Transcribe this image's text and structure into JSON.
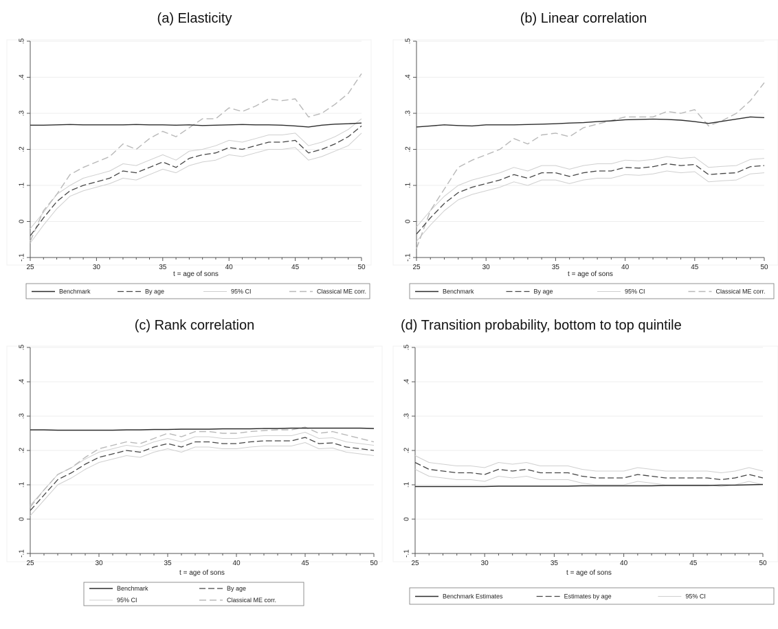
{
  "titles": [
    "(a) Elasticity",
    "(b) Linear correlation",
    "(c) Rank correlation",
    "(d) Transition probability, bottom to top quintile"
  ],
  "colors": {
    "benchmark": "#2b2b2b",
    "by_age": "#444444",
    "ci": "#cfcfcf",
    "classical": "#b8b8b8",
    "frame": "#555555",
    "grid": "#eeeeee"
  },
  "chart_data": [
    {
      "type": "line",
      "title": "(a) Elasticity",
      "xlabel": "t = age of sons",
      "ylabel": "",
      "xlim": [
        25,
        50
      ],
      "ylim": [
        -0.1,
        0.5
      ],
      "xticks": [
        25,
        30,
        35,
        40,
        45,
        50
      ],
      "yticks": [
        -0.1,
        0,
        0.1,
        0.2,
        0.3,
        0.4,
        0.5
      ],
      "ytick_labels": [
        "-.1",
        "0",
        ".1",
        ".2",
        ".3",
        ".4",
        ".5"
      ],
      "x": [
        25,
        26,
        27,
        28,
        29,
        30,
        31,
        32,
        33,
        34,
        35,
        36,
        37,
        38,
        39,
        40,
        41,
        42,
        43,
        44,
        45,
        46,
        47,
        48,
        49,
        50
      ],
      "legend": {
        "placement": "bottom",
        "columns": 4,
        "entries": [
          "Benchmark",
          "By age",
          "95% CI",
          "Classical ME corr."
        ]
      },
      "series": [
        {
          "name": "Benchmark",
          "style": "benchmark",
          "values": [
            0.267,
            0.267,
            0.268,
            0.269,
            0.268,
            0.268,
            0.268,
            0.268,
            0.269,
            0.268,
            0.268,
            0.267,
            0.268,
            0.266,
            0.267,
            0.268,
            0.269,
            0.268,
            0.268,
            0.267,
            0.265,
            0.262,
            0.267,
            0.27,
            0.271,
            0.273
          ]
        },
        {
          "name": "By age",
          "style": "by_age",
          "values": [
            -0.04,
            0.01,
            0.055,
            0.085,
            0.1,
            0.11,
            0.12,
            0.14,
            0.135,
            0.15,
            0.165,
            0.15,
            0.175,
            0.185,
            0.19,
            0.205,
            0.2,
            0.21,
            0.22,
            0.22,
            0.225,
            0.19,
            0.2,
            0.215,
            0.235,
            0.265
          ]
        },
        {
          "name": "95% CI",
          "style": "ci",
          "values": [
            -0.02,
            0.025,
            0.075,
            0.1,
            0.12,
            0.13,
            0.14,
            0.16,
            0.155,
            0.17,
            0.185,
            0.17,
            0.195,
            0.2,
            0.21,
            0.225,
            0.22,
            0.23,
            0.24,
            0.24,
            0.245,
            0.21,
            0.22,
            0.235,
            0.255,
            0.285
          ]
        },
        {
          "name": "95% CI",
          "style": "ci",
          "values": [
            -0.06,
            -0.01,
            0.035,
            0.07,
            0.085,
            0.095,
            0.105,
            0.12,
            0.115,
            0.13,
            0.145,
            0.135,
            0.155,
            0.165,
            0.17,
            0.185,
            0.18,
            0.19,
            0.2,
            0.2,
            0.205,
            0.17,
            0.18,
            0.195,
            0.21,
            0.245
          ]
        },
        {
          "name": "Classical ME corr.",
          "style": "classical",
          "values": [
            -0.055,
            0.03,
            0.075,
            0.13,
            0.15,
            0.165,
            0.18,
            0.215,
            0.2,
            0.23,
            0.25,
            0.235,
            0.26,
            0.285,
            0.285,
            0.315,
            0.305,
            0.32,
            0.34,
            0.335,
            0.34,
            0.29,
            0.3,
            0.325,
            0.355,
            0.41
          ]
        }
      ]
    },
    {
      "type": "line",
      "title": "(b) Linear correlation",
      "xlabel": "t = age of sons",
      "ylabel": "",
      "xlim": [
        25,
        50
      ],
      "ylim": [
        -0.1,
        0.5
      ],
      "xticks": [
        25,
        30,
        35,
        40,
        45,
        50
      ],
      "yticks": [
        -0.1,
        0,
        0.1,
        0.2,
        0.3,
        0.4,
        0.5
      ],
      "ytick_labels": [
        "-.1",
        "0",
        ".1",
        ".2",
        ".3",
        ".4",
        ".5"
      ],
      "x": [
        25,
        26,
        27,
        28,
        29,
        30,
        31,
        32,
        33,
        34,
        35,
        36,
        37,
        38,
        39,
        40,
        41,
        42,
        43,
        44,
        45,
        46,
        47,
        48,
        49,
        50
      ],
      "legend": {
        "placement": "bottom",
        "columns": 4,
        "entries": [
          "Benchmark",
          "By age",
          "95% CI",
          "Classical ME corr."
        ]
      },
      "series": [
        {
          "name": "Benchmark",
          "style": "benchmark",
          "values": [
            0.262,
            0.265,
            0.268,
            0.266,
            0.265,
            0.268,
            0.268,
            0.268,
            0.269,
            0.27,
            0.271,
            0.273,
            0.274,
            0.277,
            0.279,
            0.282,
            0.283,
            0.284,
            0.283,
            0.281,
            0.277,
            0.272,
            0.278,
            0.284,
            0.29,
            0.288
          ]
        },
        {
          "name": "By age",
          "style": "by_age",
          "values": [
            -0.035,
            0.01,
            0.05,
            0.08,
            0.095,
            0.105,
            0.115,
            0.13,
            0.12,
            0.135,
            0.135,
            0.125,
            0.135,
            0.14,
            0.14,
            0.15,
            0.148,
            0.152,
            0.16,
            0.155,
            0.158,
            0.13,
            0.133,
            0.135,
            0.152,
            0.155
          ]
        },
        {
          "name": "95% CI",
          "style": "ci",
          "values": [
            -0.015,
            0.03,
            0.07,
            0.1,
            0.115,
            0.125,
            0.135,
            0.15,
            0.14,
            0.155,
            0.155,
            0.145,
            0.155,
            0.16,
            0.16,
            0.17,
            0.168,
            0.172,
            0.18,
            0.175,
            0.178,
            0.15,
            0.153,
            0.155,
            0.172,
            0.175
          ]
        },
        {
          "name": "95% CI",
          "style": "ci",
          "values": [
            -0.055,
            -0.01,
            0.03,
            0.06,
            0.075,
            0.085,
            0.095,
            0.11,
            0.1,
            0.115,
            0.115,
            0.105,
            0.115,
            0.12,
            0.12,
            0.13,
            0.128,
            0.132,
            0.14,
            0.135,
            0.138,
            0.11,
            0.113,
            0.115,
            0.132,
            0.135
          ]
        },
        {
          "name": "Classical ME corr.",
          "style": "classical",
          "values": [
            -0.075,
            0.03,
            0.09,
            0.15,
            0.17,
            0.185,
            0.2,
            0.23,
            0.215,
            0.24,
            0.245,
            0.235,
            0.26,
            0.27,
            0.28,
            0.29,
            0.29,
            0.29,
            0.305,
            0.3,
            0.31,
            0.265,
            0.28,
            0.3,
            0.335,
            0.385
          ]
        }
      ]
    },
    {
      "type": "line",
      "title": "(c) Rank correlation",
      "xlabel": "t = age of sons",
      "ylabel": "",
      "xlim": [
        25,
        50
      ],
      "ylim": [
        -0.1,
        0.5
      ],
      "xticks": [
        25,
        30,
        35,
        40,
        45,
        50
      ],
      "yticks": [
        -0.1,
        0,
        0.1,
        0.2,
        0.3,
        0.4,
        0.5
      ],
      "ytick_labels": [
        "-.1",
        "0",
        ".1",
        ".2",
        ".3",
        ".4",
        ".5"
      ],
      "x": [
        25,
        26,
        27,
        28,
        29,
        30,
        31,
        32,
        33,
        34,
        35,
        36,
        37,
        38,
        39,
        40,
        41,
        42,
        43,
        44,
        45,
        46,
        47,
        48,
        49,
        50
      ],
      "legend": {
        "placement": "bottom",
        "columns": 2,
        "entries": [
          "Benchmark",
          "By age",
          "95% CI",
          "Classical ME corr."
        ]
      },
      "series": [
        {
          "name": "Benchmark",
          "style": "benchmark",
          "values": [
            0.26,
            0.26,
            0.259,
            0.259,
            0.259,
            0.259,
            0.259,
            0.26,
            0.26,
            0.261,
            0.261,
            0.262,
            0.262,
            0.262,
            0.263,
            0.263,
            0.263,
            0.264,
            0.264,
            0.265,
            0.265,
            0.265,
            0.265,
            0.265,
            0.265,
            0.264
          ]
        },
        {
          "name": "By age",
          "style": "by_age",
          "values": [
            0.025,
            0.07,
            0.115,
            0.135,
            0.16,
            0.18,
            0.19,
            0.2,
            0.195,
            0.21,
            0.22,
            0.21,
            0.225,
            0.225,
            0.22,
            0.22,
            0.225,
            0.228,
            0.228,
            0.228,
            0.238,
            0.22,
            0.222,
            0.21,
            0.205,
            0.2
          ]
        },
        {
          "name": "95% CI",
          "style": "ci",
          "values": [
            0.04,
            0.085,
            0.13,
            0.15,
            0.175,
            0.195,
            0.205,
            0.215,
            0.21,
            0.225,
            0.235,
            0.225,
            0.24,
            0.24,
            0.235,
            0.235,
            0.24,
            0.243,
            0.243,
            0.243,
            0.253,
            0.235,
            0.237,
            0.225,
            0.22,
            0.215
          ]
        },
        {
          "name": "95% CI",
          "style": "ci",
          "values": [
            0.01,
            0.055,
            0.1,
            0.12,
            0.145,
            0.165,
            0.175,
            0.185,
            0.18,
            0.195,
            0.205,
            0.195,
            0.21,
            0.21,
            0.205,
            0.205,
            0.21,
            0.213,
            0.213,
            0.213,
            0.223,
            0.205,
            0.207,
            0.195,
            0.19,
            0.185
          ]
        },
        {
          "name": "Classical ME corr.",
          "style": "classical",
          "values": [
            0.035,
            0.085,
            0.13,
            0.15,
            0.18,
            0.205,
            0.215,
            0.225,
            0.22,
            0.235,
            0.25,
            0.24,
            0.255,
            0.255,
            0.25,
            0.25,
            0.255,
            0.258,
            0.26,
            0.26,
            0.268,
            0.25,
            0.255,
            0.245,
            0.235,
            0.225
          ]
        }
      ]
    },
    {
      "type": "line",
      "title": "(d) Transition probability, bottom to top quintile",
      "xlabel": "t = age of sons",
      "ylabel": "",
      "xlim": [
        25,
        50
      ],
      "ylim": [
        -0.1,
        0.5
      ],
      "xticks": [
        25,
        30,
        35,
        40,
        45,
        50
      ],
      "yticks": [
        -0.1,
        0,
        0.1,
        0.2,
        0.3,
        0.4,
        0.5
      ],
      "ytick_labels": [
        "-.1",
        "0",
        ".1",
        ".2",
        ".3",
        ".4",
        ".5"
      ],
      "x": [
        25,
        26,
        27,
        28,
        29,
        30,
        31,
        32,
        33,
        34,
        35,
        36,
        37,
        38,
        39,
        40,
        41,
        42,
        43,
        44,
        45,
        46,
        47,
        48,
        49,
        50
      ],
      "legend": {
        "placement": "bottom",
        "columns": 3,
        "entries": [
          "Benchmark Estimates",
          "Estimates by age",
          "95% CI"
        ]
      },
      "series": [
        {
          "name": "Benchmark Estimates",
          "style": "benchmark",
          "values": [
            0.095,
            0.095,
            0.095,
            0.095,
            0.095,
            0.095,
            0.096,
            0.096,
            0.096,
            0.096,
            0.096,
            0.096,
            0.097,
            0.097,
            0.097,
            0.097,
            0.097,
            0.097,
            0.098,
            0.098,
            0.098,
            0.098,
            0.099,
            0.099,
            0.1,
            0.101
          ]
        },
        {
          "name": "Estimates by age",
          "style": "by_age",
          "values": [
            0.165,
            0.145,
            0.14,
            0.135,
            0.135,
            0.13,
            0.145,
            0.14,
            0.145,
            0.135,
            0.135,
            0.135,
            0.125,
            0.12,
            0.12,
            0.12,
            0.13,
            0.125,
            0.12,
            0.12,
            0.12,
            0.12,
            0.115,
            0.12,
            0.13,
            0.12
          ]
        },
        {
          "name": "95% CI",
          "style": "ci",
          "values": [
            0.185,
            0.165,
            0.16,
            0.155,
            0.155,
            0.15,
            0.165,
            0.16,
            0.165,
            0.155,
            0.155,
            0.155,
            0.145,
            0.14,
            0.14,
            0.14,
            0.15,
            0.145,
            0.14,
            0.14,
            0.14,
            0.14,
            0.135,
            0.14,
            0.15,
            0.14
          ]
        },
        {
          "name": "95% CI",
          "style": "ci",
          "values": [
            0.145,
            0.125,
            0.12,
            0.115,
            0.115,
            0.11,
            0.125,
            0.12,
            0.125,
            0.115,
            0.115,
            0.115,
            0.105,
            0.1,
            0.1,
            0.1,
            0.11,
            0.105,
            0.1,
            0.1,
            0.1,
            0.1,
            0.095,
            0.1,
            0.11,
            0.1
          ]
        }
      ]
    }
  ]
}
